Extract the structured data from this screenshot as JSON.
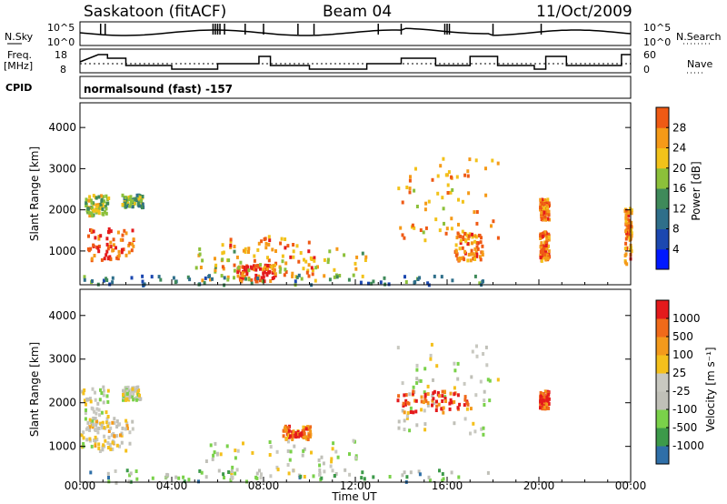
{
  "header": {
    "station": "Saskatoon (fitACF)",
    "beam": "Beam 04",
    "date": "11/Oct/2009"
  },
  "summary_panels": {
    "left_labels": {
      "nsky": "N.Sky",
      "freq_top": "Freq.",
      "freq_unit": "[MHz]",
      "cpid": "CPID"
    },
    "right_labels": {
      "nsearch": "N.Search",
      "nave": "Nave"
    },
    "nsky_ticks": [
      "10^5",
      "10^0"
    ],
    "nsearch_ticks": [
      "10^5",
      "10^0"
    ],
    "freq_ticks": [
      "18",
      "8"
    ],
    "nave_ticks": [
      "60",
      "0"
    ],
    "cpid_text": "normalsound (fast) -157"
  },
  "colors": {
    "power_scale": [
      "#0018ff",
      "#1c48b0",
      "#2f6f8a",
      "#3f8a5a",
      "#8cc03a",
      "#f2c21a",
      "#f59a18",
      "#ef5a14",
      "#e41a1c"
    ],
    "velocity_scale": [
      "#e41a1c",
      "#f06a1a",
      "#f39a1c",
      "#f4c01c",
      "#c8c8c0",
      "#c0c0b8",
      "#7ad14a",
      "#3d9a4a",
      "#2f6fa8",
      "#1f3fb0"
    ]
  },
  "chart_data": [
    {
      "type": "heatmap",
      "title": "",
      "xlabel": "",
      "ylabel": "Slant Range [km]",
      "ylim": [
        180,
        4600
      ],
      "y_ticks": [
        "1000",
        "2000",
        "3000",
        "4000"
      ],
      "colorbar_label": "Power [dB]",
      "colorbar_ticks": [
        "4",
        "8",
        "12",
        "16",
        "20",
        "24",
        "28"
      ],
      "regions": [
        {
          "t0": 0.3,
          "t1": 2.3,
          "r0": 800,
          "r1": 1600,
          "level": 0.85
        },
        {
          "t0": 0.2,
          "t1": 1.2,
          "r0": 1900,
          "r1": 2400,
          "level": 0.55
        },
        {
          "t0": 1.8,
          "t1": 2.7,
          "r0": 2100,
          "r1": 2400,
          "level": 0.45
        },
        {
          "t0": 6.1,
          "t1": 10.2,
          "r0": 400,
          "r1": 1400,
          "level": 0.75
        },
        {
          "t0": 6.8,
          "t1": 8.5,
          "r0": 300,
          "r1": 700,
          "level": 0.9
        },
        {
          "t0": 5.0,
          "t1": 12.5,
          "r0": 300,
          "r1": 1100,
          "level": 0.6
        },
        {
          "t0": 13.8,
          "t1": 18.2,
          "r0": 1300,
          "r1": 3300,
          "level": 0.7
        },
        {
          "t0": 16.3,
          "t1": 17.5,
          "r0": 800,
          "r1": 1500,
          "level": 0.75
        },
        {
          "t0": 20.0,
          "t1": 20.4,
          "r0": 1800,
          "r1": 2300,
          "level": 0.8
        },
        {
          "t0": 20.0,
          "t1": 20.4,
          "r0": 800,
          "r1": 1500,
          "level": 0.8
        },
        {
          "t0": 23.7,
          "t1": 24.0,
          "r0": 700,
          "r1": 2100,
          "level": 0.75
        },
        {
          "t0": 0.0,
          "t1": 18.0,
          "r0": 200,
          "r1": 450,
          "level": 0.3
        }
      ]
    },
    {
      "type": "heatmap",
      "title": "",
      "xlabel": "Time UT",
      "ylabel": "Slant Range [km]",
      "ylim": [
        180,
        4600
      ],
      "y_ticks": [
        "1000",
        "2000",
        "3000",
        "4000"
      ],
      "x_ticks": [
        "00:00",
        "04:00",
        "08:00",
        "12:00",
        "16:00",
        "20:00",
        "00:00"
      ],
      "colorbar_label": "Velocity [m s⁻¹]",
      "colorbar_ticks": [
        "1000",
        "500",
        "100",
        "25",
        "-25",
        "-100",
        "-500",
        "-1000"
      ],
      "regions": [
        {
          "t0": 0.3,
          "t1": 2.3,
          "r0": 900,
          "r1": 1700,
          "level": 0.4
        },
        {
          "t0": 0.0,
          "t1": 1.2,
          "r0": 1000,
          "r1": 2400,
          "level": 0.5
        },
        {
          "t0": 1.8,
          "t1": 2.6,
          "r0": 2100,
          "r1": 2400,
          "level": 0.5
        },
        {
          "t0": 5.4,
          "t1": 12.0,
          "r0": 300,
          "r1": 1200,
          "level": 0.5
        },
        {
          "t0": 8.8,
          "t1": 10.0,
          "r0": 1200,
          "r1": 1500,
          "level": 0.15
        },
        {
          "t0": 13.8,
          "t1": 18.2,
          "r0": 1300,
          "r1": 3400,
          "level": 0.5
        },
        {
          "t0": 13.8,
          "t1": 17.2,
          "r0": 1800,
          "r1": 2300,
          "level": 0.12
        },
        {
          "t0": 20.0,
          "t1": 20.4,
          "r0": 1900,
          "r1": 2300,
          "level": 0.1
        },
        {
          "t0": 0.0,
          "t1": 18.0,
          "r0": 200,
          "r1": 500,
          "level": 0.65
        }
      ]
    }
  ]
}
